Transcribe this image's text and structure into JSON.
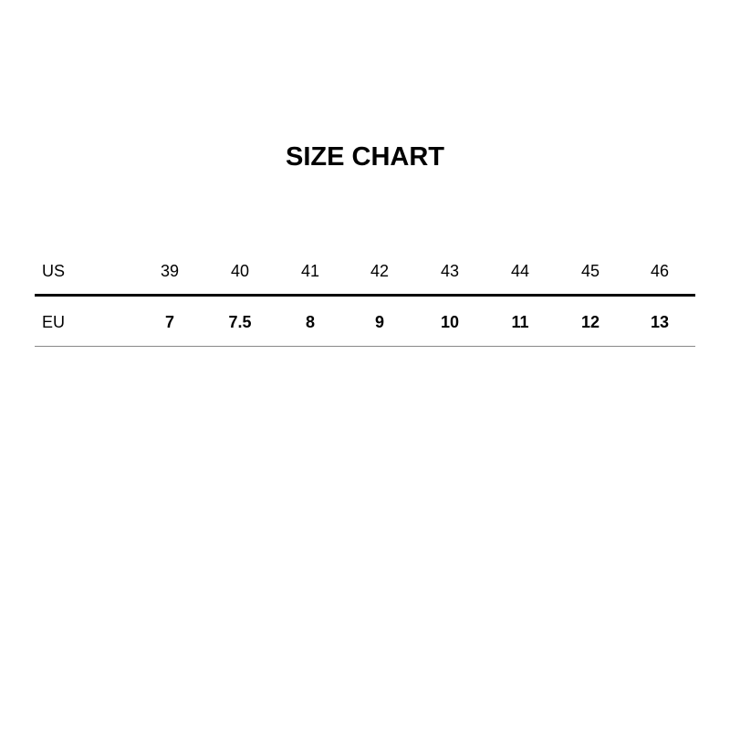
{
  "title": "SIZE CHART",
  "rows": [
    {
      "label": "US",
      "values": [
        "39",
        "40",
        "41",
        "42",
        "43",
        "44",
        "45",
        "46"
      ]
    },
    {
      "label": "EU",
      "values": [
        "7",
        "7.5",
        "8",
        "9",
        "10",
        "11",
        "12",
        "13"
      ]
    }
  ],
  "colors": {
    "text": "#000000",
    "header_rule": "#000000",
    "bottom_rule": "#888888"
  }
}
